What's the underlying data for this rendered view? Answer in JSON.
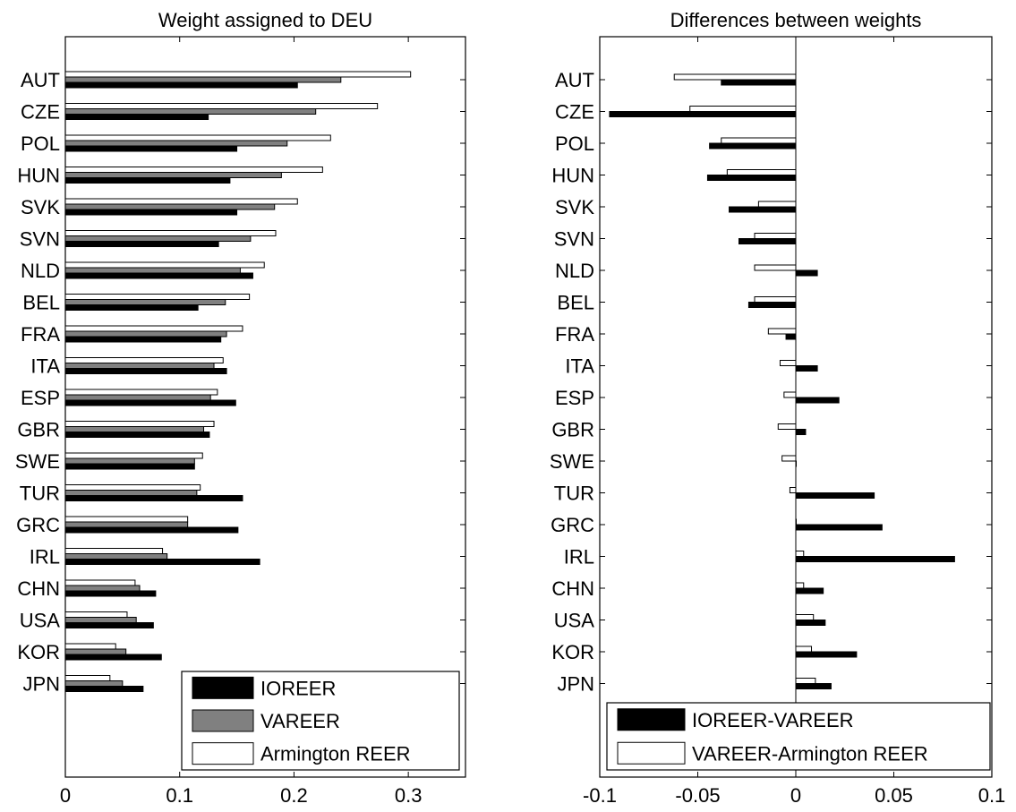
{
  "chart_data": [
    {
      "type": "bar",
      "orientation": "horizontal",
      "title": "Weight assigned to DEU",
      "xlabel": "",
      "ylabel": "",
      "xlim": [
        0,
        0.35
      ],
      "xticks": [
        "0",
        "0.1",
        "0.2",
        "0.3"
      ],
      "xtick_values": [
        0,
        0.1,
        0.2,
        0.3
      ],
      "categories": [
        "AUT",
        "CZE",
        "POL",
        "HUN",
        "SVK",
        "SVN",
        "NLD",
        "BEL",
        "FRA",
        "ITA",
        "ESP",
        "GBR",
        "SWE",
        "TUR",
        "GRC",
        "IRL",
        "CHN",
        "USA",
        "KOR",
        "JPN"
      ],
      "series": [
        {
          "name": "IOREER",
          "color": "#000000",
          "values": [
            0.203,
            0.125,
            0.15,
            0.144,
            0.15,
            0.134,
            0.164,
            0.116,
            0.136,
            0.141,
            0.149,
            0.126,
            0.113,
            0.155,
            0.151,
            0.17,
            0.079,
            0.077,
            0.084,
            0.068
          ]
        },
        {
          "name": "VAREER",
          "color": "#808080",
          "values": [
            0.241,
            0.219,
            0.194,
            0.189,
            0.183,
            0.162,
            0.153,
            0.14,
            0.141,
            0.13,
            0.127,
            0.121,
            0.113,
            0.115,
            0.107,
            0.089,
            0.065,
            0.062,
            0.053,
            0.05
          ]
        },
        {
          "name": "Armington REER",
          "color": "#ffffff",
          "values": [
            0.302,
            0.273,
            0.232,
            0.225,
            0.203,
            0.184,
            0.174,
            0.161,
            0.155,
            0.138,
            0.133,
            0.13,
            0.12,
            0.118,
            0.107,
            0.085,
            0.061,
            0.054,
            0.044,
            0.039
          ]
        }
      ],
      "grid": false,
      "legend": "bottom-right"
    },
    {
      "type": "bar",
      "orientation": "horizontal",
      "title": "Differences between weights",
      "xlabel": "",
      "ylabel": "",
      "xlim": [
        -0.1,
        0.1
      ],
      "xticks": [
        "-0.1",
        "-0.05",
        "0",
        "0.05",
        "0.1"
      ],
      "xtick_values": [
        -0.1,
        -0.05,
        0,
        0.05,
        0.1
      ],
      "categories": [
        "AUT",
        "CZE",
        "POL",
        "HUN",
        "SVK",
        "SVN",
        "NLD",
        "BEL",
        "FRA",
        "ITA",
        "ESP",
        "GBR",
        "SWE",
        "TUR",
        "GRC",
        "IRL",
        "CHN",
        "USA",
        "KOR",
        "JPN"
      ],
      "series": [
        {
          "name": "IOREER-VAREER",
          "color": "#000000",
          "values": [
            -0.038,
            -0.095,
            -0.044,
            -0.045,
            -0.034,
            -0.029,
            0.011,
            -0.024,
            -0.005,
            0.011,
            0.022,
            0.005,
            0.0,
            0.04,
            0.044,
            0.081,
            0.014,
            0.015,
            0.031,
            0.018
          ]
        },
        {
          "name": "VAREER-Armington REER",
          "color": "#ffffff",
          "values": [
            -0.062,
            -0.054,
            -0.038,
            -0.035,
            -0.019,
            -0.021,
            -0.021,
            -0.021,
            -0.014,
            -0.008,
            -0.006,
            -0.009,
            -0.007,
            -0.003,
            0.0,
            0.004,
            0.004,
            0.009,
            0.008,
            0.01
          ]
        }
      ],
      "grid": false,
      "legend": "bottom"
    }
  ]
}
